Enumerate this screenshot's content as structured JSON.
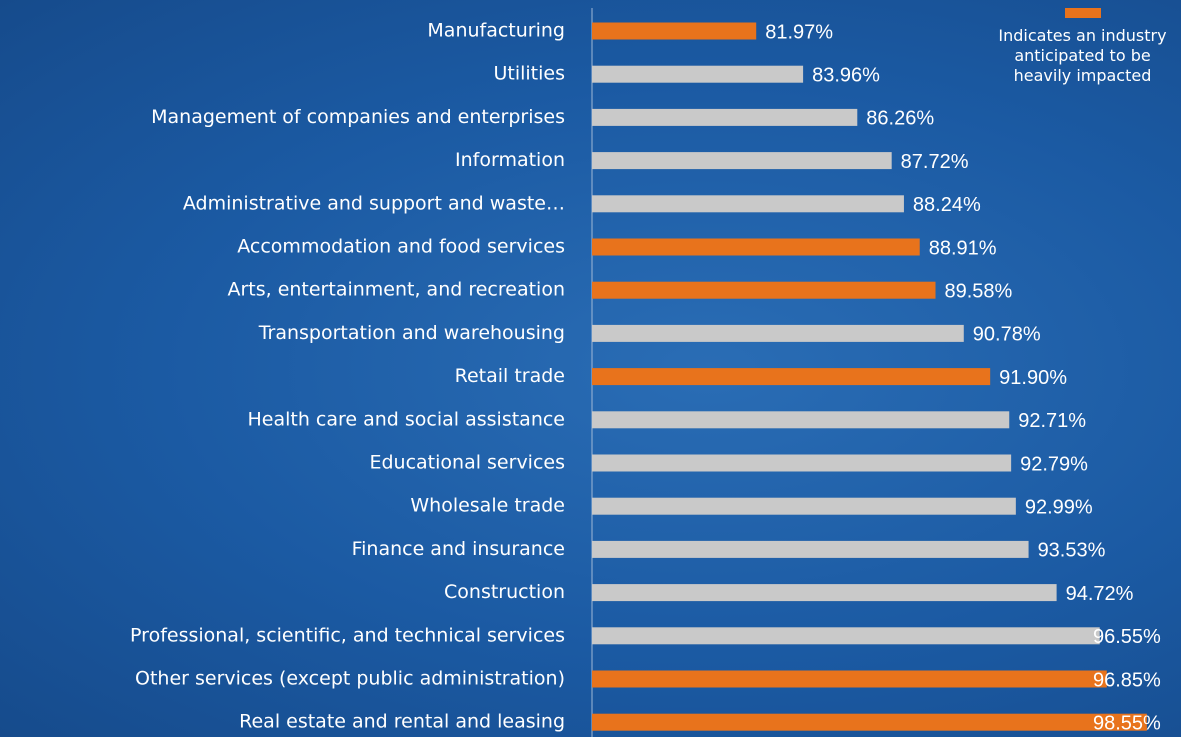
{
  "chart_data": {
    "type": "barh",
    "categories": [
      "Manufacturing",
      "Utilities",
      "Management of companies and enterprises",
      "Information",
      "Administrative and support and waste…",
      "Accommodation and food services",
      "Arts, entertainment, and recreation",
      "Transportation and warehousing",
      "Retail trade",
      "Health care and social assistance",
      "Educational services",
      "Wholesale trade",
      "Finance and insurance",
      "Construction",
      "Professional, scientific, and technical services",
      "Other services (except public administration)",
      "Real estate and rental and leasing"
    ],
    "values": [
      81.97,
      83.96,
      86.26,
      87.72,
      88.24,
      88.91,
      89.58,
      90.78,
      91.9,
      92.71,
      92.79,
      92.99,
      93.53,
      94.72,
      96.55,
      96.85,
      98.55
    ],
    "value_labels": [
      "81.97%",
      "83.96%",
      "86.26%",
      "87.72%",
      "88.24%",
      "88.91%",
      "89.58%",
      "90.78%",
      "91.90%",
      "92.71%",
      "92.79%",
      "92.99%",
      "93.53%",
      "94.72%",
      "96.55%",
      "96.85%",
      "98.55%"
    ],
    "colors": [
      "#e8731c",
      "#c9c9c9",
      "#c9c9c9",
      "#c9c9c9",
      "#c9c9c9",
      "#e8731c",
      "#e8731c",
      "#c9c9c9",
      "#e8731c",
      "#c9c9c9",
      "#c9c9c9",
      "#c9c9c9",
      "#c9c9c9",
      "#c9c9c9",
      "#c9c9c9",
      "#e8731c",
      "#e8731c"
    ],
    "xlim": [
      75,
      100
    ],
    "legend": {
      "name": "Indicates an industry anticipated to be heavily impacted",
      "color": "#e8731c"
    }
  }
}
